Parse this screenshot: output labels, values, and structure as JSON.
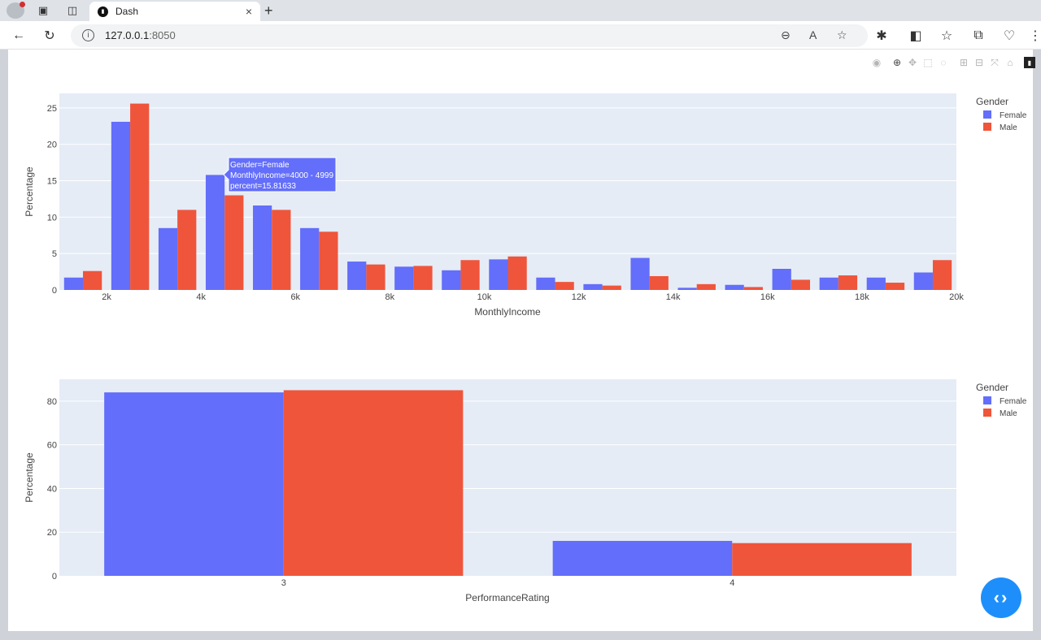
{
  "browser": {
    "tab_title": "Dash",
    "tab_close": "×",
    "new_tab": "+",
    "url_host": "127.0.0.1",
    "url_port": ":8050"
  },
  "charts": {
    "income": {
      "xlabel": "MonthlyIncome",
      "ylabel": "Percentage",
      "legend_title": "Gender",
      "tooltip": [
        "Gender=Female",
        "MonthlyIncome=4000 - 4999",
        "percent=15.81633"
      ]
    },
    "performance": {
      "xlabel": "PerformanceRating",
      "ylabel": "Percentage",
      "legend_title": "Gender"
    }
  },
  "colors": {
    "female": "#636efa",
    "male": "#ef553b",
    "plot_bg": "#e5ecf6"
  },
  "chart_data": [
    {
      "type": "bar",
      "xlabel": "MonthlyIncome",
      "ylabel": "Percentage",
      "x_bins_start": [
        1000,
        2000,
        3000,
        4000,
        5000,
        6000,
        7000,
        8000,
        9000,
        10000,
        11000,
        12000,
        13000,
        14000,
        15000,
        16000,
        17000,
        18000,
        19000
      ],
      "bin_width": 1000,
      "xlim": [
        1000,
        20000
      ],
      "x_ticks": [
        2000,
        4000,
        6000,
        8000,
        10000,
        12000,
        14000,
        16000,
        18000,
        20000
      ],
      "x_tick_labels": [
        "2k",
        "4k",
        "6k",
        "8k",
        "10k",
        "12k",
        "14k",
        "16k",
        "18k",
        "20k"
      ],
      "ylim": [
        0,
        27
      ],
      "y_ticks": [
        0,
        5,
        10,
        15,
        20,
        25
      ],
      "legend": {
        "title": "Gender",
        "placement": "right"
      },
      "series": [
        {
          "name": "Female",
          "values": [
            1.7,
            23.1,
            8.5,
            15.8,
            11.6,
            8.5,
            3.9,
            3.2,
            2.7,
            4.2,
            1.7,
            0.8,
            4.4,
            0.3,
            0.7,
            2.9,
            1.7,
            1.7,
            2.4
          ]
        },
        {
          "name": "Male",
          "values": [
            2.6,
            25.6,
            11.0,
            13.0,
            11.0,
            8.0,
            3.5,
            3.3,
            4.1,
            4.6,
            1.1,
            0.6,
            1.9,
            0.8,
            0.4,
            1.4,
            2.0,
            1.0,
            4.1
          ]
        }
      ],
      "tooltip": {
        "series": "Female",
        "bin_index": 3,
        "lines": [
          "Gender=Female",
          "MonthlyIncome=4000 - 4999",
          "percent=15.81633"
        ]
      }
    },
    {
      "type": "bar",
      "xlabel": "PerformanceRating",
      "ylabel": "Percentage",
      "categories": [
        "3",
        "4"
      ],
      "ylim": [
        0,
        90
      ],
      "y_ticks": [
        0,
        20,
        40,
        60,
        80
      ],
      "legend": {
        "title": "Gender",
        "placement": "right"
      },
      "series": [
        {
          "name": "Female",
          "values": [
            84.0,
            16.0
          ]
        },
        {
          "name": "Male",
          "values": [
            85.0,
            15.0
          ]
        }
      ]
    }
  ]
}
